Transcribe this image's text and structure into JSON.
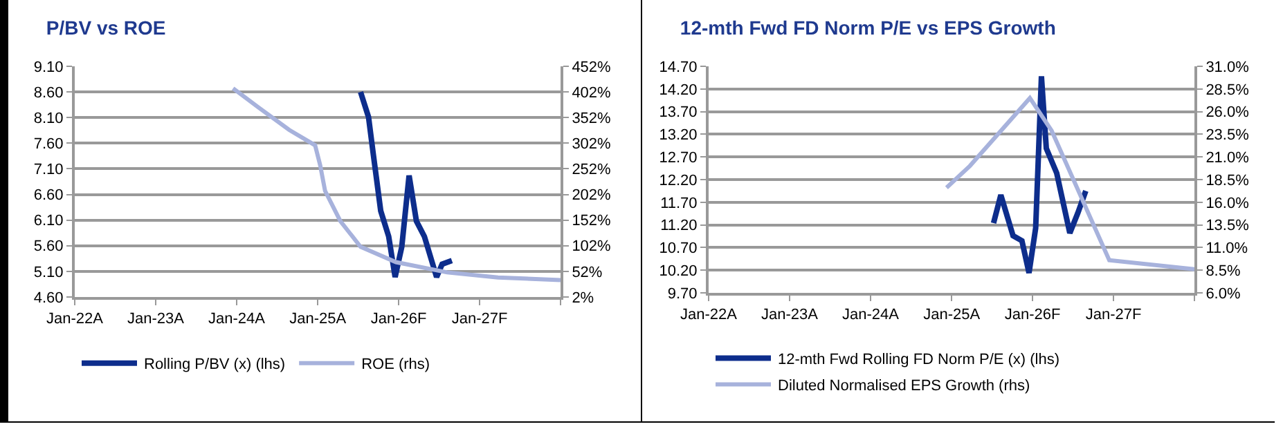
{
  "chart_data": [
    {
      "type": "line",
      "title": "P/BV vs ROE",
      "xlim": [
        "2022-01-01",
        "2028-01-01"
      ],
      "xticks": [
        {
          "value": "2022-01-01",
          "label": "Jan-22A"
        },
        {
          "value": "2023-01-01",
          "label": "Jan-23A"
        },
        {
          "value": "2024-01-01",
          "label": "Jan-24A"
        },
        {
          "value": "2025-01-01",
          "label": "Jan-25A"
        },
        {
          "value": "2026-01-01",
          "label": "Jan-26F"
        },
        {
          "value": "2027-01-01",
          "label": "Jan-27F"
        },
        {
          "value": "2028-01-01",
          "label": null
        }
      ],
      "ylim": [
        4.6,
        9.1
      ],
      "yticks": [
        {
          "value": 4.6,
          "label": "4.60"
        },
        {
          "value": 5.1,
          "label": "5.10"
        },
        {
          "value": 5.6,
          "label": "5.60"
        },
        {
          "value": 6.1,
          "label": "6.10"
        },
        {
          "value": 6.6,
          "label": "6.60"
        },
        {
          "value": 7.1,
          "label": "7.10"
        },
        {
          "value": 7.6,
          "label": "7.60"
        },
        {
          "value": 8.1,
          "label": "8.10"
        },
        {
          "value": 8.6,
          "label": "8.60"
        },
        {
          "value": 9.1,
          "label": "9.10"
        }
      ],
      "y2lim": [
        2,
        452
      ],
      "y2ticks": [
        {
          "value": 2,
          "label": "2%"
        },
        {
          "value": 52,
          "label": "52%"
        },
        {
          "value": 102,
          "label": "102%"
        },
        {
          "value": 152,
          "label": "152%"
        },
        {
          "value": 202,
          "label": "202%"
        },
        {
          "value": 252,
          "label": "252%"
        },
        {
          "value": 302,
          "label": "302%"
        },
        {
          "value": 352,
          "label": "352%"
        },
        {
          "value": 402,
          "label": "402%"
        },
        {
          "value": 452,
          "label": "452%"
        }
      ],
      "grid": "y",
      "legend": "bottom",
      "series": [
        {
          "name": "Rolling P/BV (x) (lhs)",
          "color": "#0d2d8c",
          "x": [
            "2025-07-13",
            "2025-08-18",
            "2025-09-09",
            "2025-10-12",
            "2025-11-17",
            "2025-12-16",
            "2026-01-15",
            "2026-02-17",
            "2026-03-22",
            "2026-04-27",
            "2026-06-21",
            "2026-07-16",
            "2026-08-29"
          ],
          "values": [
            8.6,
            8.11,
            7.37,
            6.28,
            5.78,
            4.99,
            5.58,
            6.97,
            6.08,
            5.78,
            4.99,
            5.24,
            5.31
          ]
        },
        {
          "name": "ROE (rhs)",
          "color": "#a7b2dc",
          "axis": "y2",
          "x": [
            "2023-12-16",
            "2024-04-08",
            "2024-08-25",
            "2024-12-20",
            "2025-01-12",
            "2025-02-03",
            "2025-04-13",
            "2025-07-13",
            "2025-12-20",
            "2026-08-08",
            "2027-03-25",
            "2028-01-01"
          ],
          "values": [
            409,
            372,
            328,
            298,
            259,
            209,
            150,
            100,
            70,
            50,
            40,
            35
          ]
        }
      ]
    },
    {
      "type": "line",
      "title": "12-mth Fwd FD Norm P/E vs EPS Growth",
      "xlim": [
        "2022-01-01",
        "2028-01-01"
      ],
      "xticks": [
        {
          "value": "2022-01-01",
          "label": "Jan-22A"
        },
        {
          "value": "2023-01-01",
          "label": "Jan-23A"
        },
        {
          "value": "2024-01-01",
          "label": "Jan-24A"
        },
        {
          "value": "2025-01-01",
          "label": "Jan-25A"
        },
        {
          "value": "2026-01-01",
          "label": "Jan-26F"
        },
        {
          "value": "2027-01-01",
          "label": "Jan-27F"
        },
        {
          "value": "2028-01-01",
          "label": null
        }
      ],
      "ylim": [
        9.7,
        14.7
      ],
      "yticks": [
        {
          "value": 9.7,
          "label": "9.70"
        },
        {
          "value": 10.2,
          "label": "10.20"
        },
        {
          "value": 10.7,
          "label": "10.70"
        },
        {
          "value": 11.2,
          "label": "11.20"
        },
        {
          "value": 11.7,
          "label": "11.70"
        },
        {
          "value": 12.2,
          "label": "12.20"
        },
        {
          "value": 12.7,
          "label": "12.70"
        },
        {
          "value": 13.2,
          "label": "13.20"
        },
        {
          "value": 13.7,
          "label": "13.70"
        },
        {
          "value": 14.2,
          "label": "14.20"
        },
        {
          "value": 14.7,
          "label": "14.70"
        }
      ],
      "y2lim": [
        6,
        31
      ],
      "y2ticks": [
        {
          "value": 6,
          "label": "6.0%"
        },
        {
          "value": 8.5,
          "label": "8.5%"
        },
        {
          "value": 11,
          "label": "11.0%"
        },
        {
          "value": 13.5,
          "label": "13.5%"
        },
        {
          "value": 16,
          "label": "16.0%"
        },
        {
          "value": 18.5,
          "label": "18.5%"
        },
        {
          "value": 21,
          "label": "21.0%"
        },
        {
          "value": 23.5,
          "label": "23.5%"
        },
        {
          "value": 26,
          "label": "26.0%"
        },
        {
          "value": 28.5,
          "label": "28.5%"
        },
        {
          "value": 31,
          "label": "31.0%"
        }
      ],
      "grid": "y",
      "legend": "bottom",
      "series": [
        {
          "name": "12-mth Fwd Rolling FD Norm P/E (x) (lhs)",
          "color": "#0d2d8c",
          "x": [
            "2025-07-09",
            "2025-08-11",
            "2025-10-05",
            "2025-11-14",
            "2025-12-16",
            "2026-01-15",
            "2026-02-10",
            "2026-03-04",
            "2026-04-20",
            "2026-06-18",
            "2026-07-24",
            "2026-08-29"
          ],
          "values": [
            11.24,
            11.86,
            10.96,
            10.85,
            10.14,
            11.13,
            14.48,
            12.89,
            12.34,
            11.02,
            11.46,
            11.95
          ]
        },
        {
          "name": "Diluted Normalised EPS Growth (rhs)",
          "color": "#a7b2dc",
          "axis": "y2",
          "x": [
            "2024-12-09",
            "2025-03-24",
            "2025-12-20",
            "2026-03-28",
            "2026-12-13",
            "2028-01-01"
          ],
          "values": [
            17.6,
            20,
            27.5,
            23.9,
            9.6,
            8.6
          ]
        }
      ]
    }
  ]
}
